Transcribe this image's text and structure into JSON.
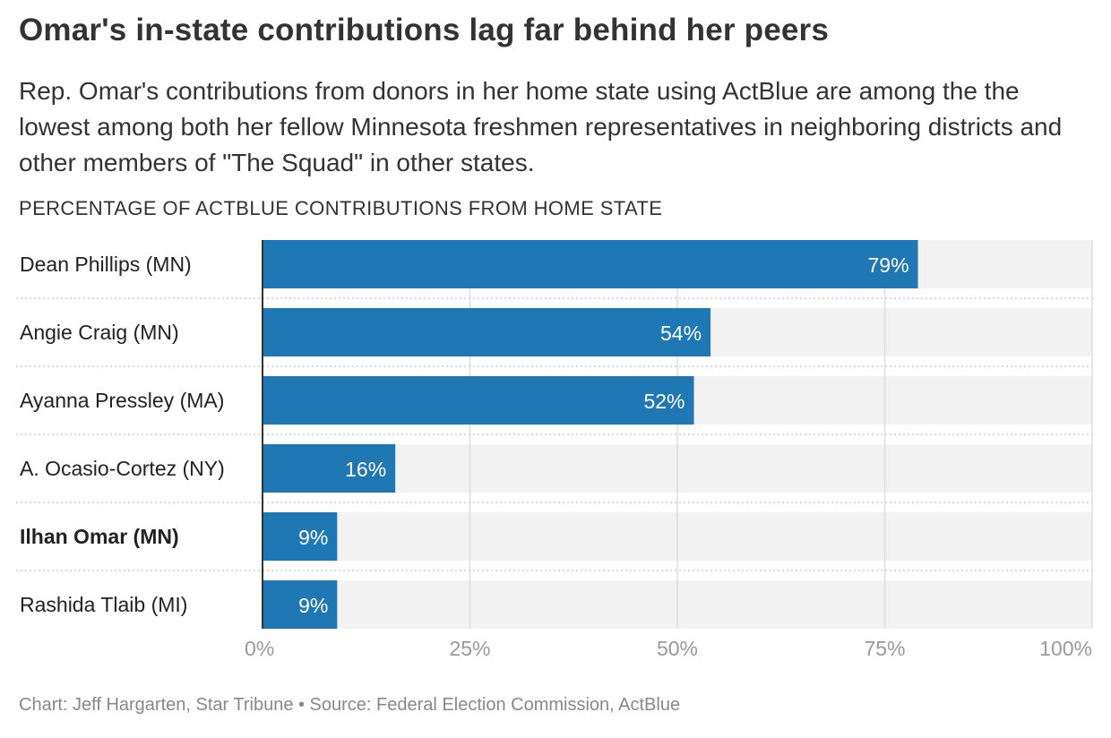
{
  "header": {
    "title": "Omar's in-state contributions lag far behind her peers",
    "subtitle": "Rep. Omar's contributions from donors in her home state using ActBlue are among the the lowest among both her fellow Minnesota freshmen representatives in neighboring districts and other members of \"The Squad\" in other states.",
    "axis_heading": "PERCENTAGE OF ACTBLUE CONTRIBUTIONS FROM HOME STATE"
  },
  "chart_data": {
    "type": "bar",
    "orientation": "horizontal",
    "categories": [
      "Dean Phillips (MN)",
      "Angie Craig (MN)",
      "Ayanna Pressley (MA)",
      "A. Ocasio-Cortez (NY)",
      "Ilhan Omar (MN)",
      "Rashida Tlaib (MI)"
    ],
    "values": [
      79,
      54,
      52,
      16,
      9,
      9
    ],
    "value_labels": [
      "79%",
      "54%",
      "52%",
      "16%",
      "9%",
      "9%"
    ],
    "highlighted_category": "Ilhan Omar (MN)",
    "xlim": [
      0,
      100
    ],
    "x_ticks": [
      0,
      25,
      50,
      75,
      100
    ],
    "x_tick_labels": [
      "0%",
      "25%",
      "50%",
      "75%",
      "100%"
    ],
    "grid": true,
    "colors": {
      "bar": "#1f77b4",
      "track": "#f2f2f2",
      "gridline": "#dddddd",
      "label_text": "#ffffff",
      "tick_text": "#999999"
    }
  },
  "footer": {
    "source": "Chart: Jeff Hargarten, Star Tribune • Source: Federal Election Commission, ActBlue"
  }
}
